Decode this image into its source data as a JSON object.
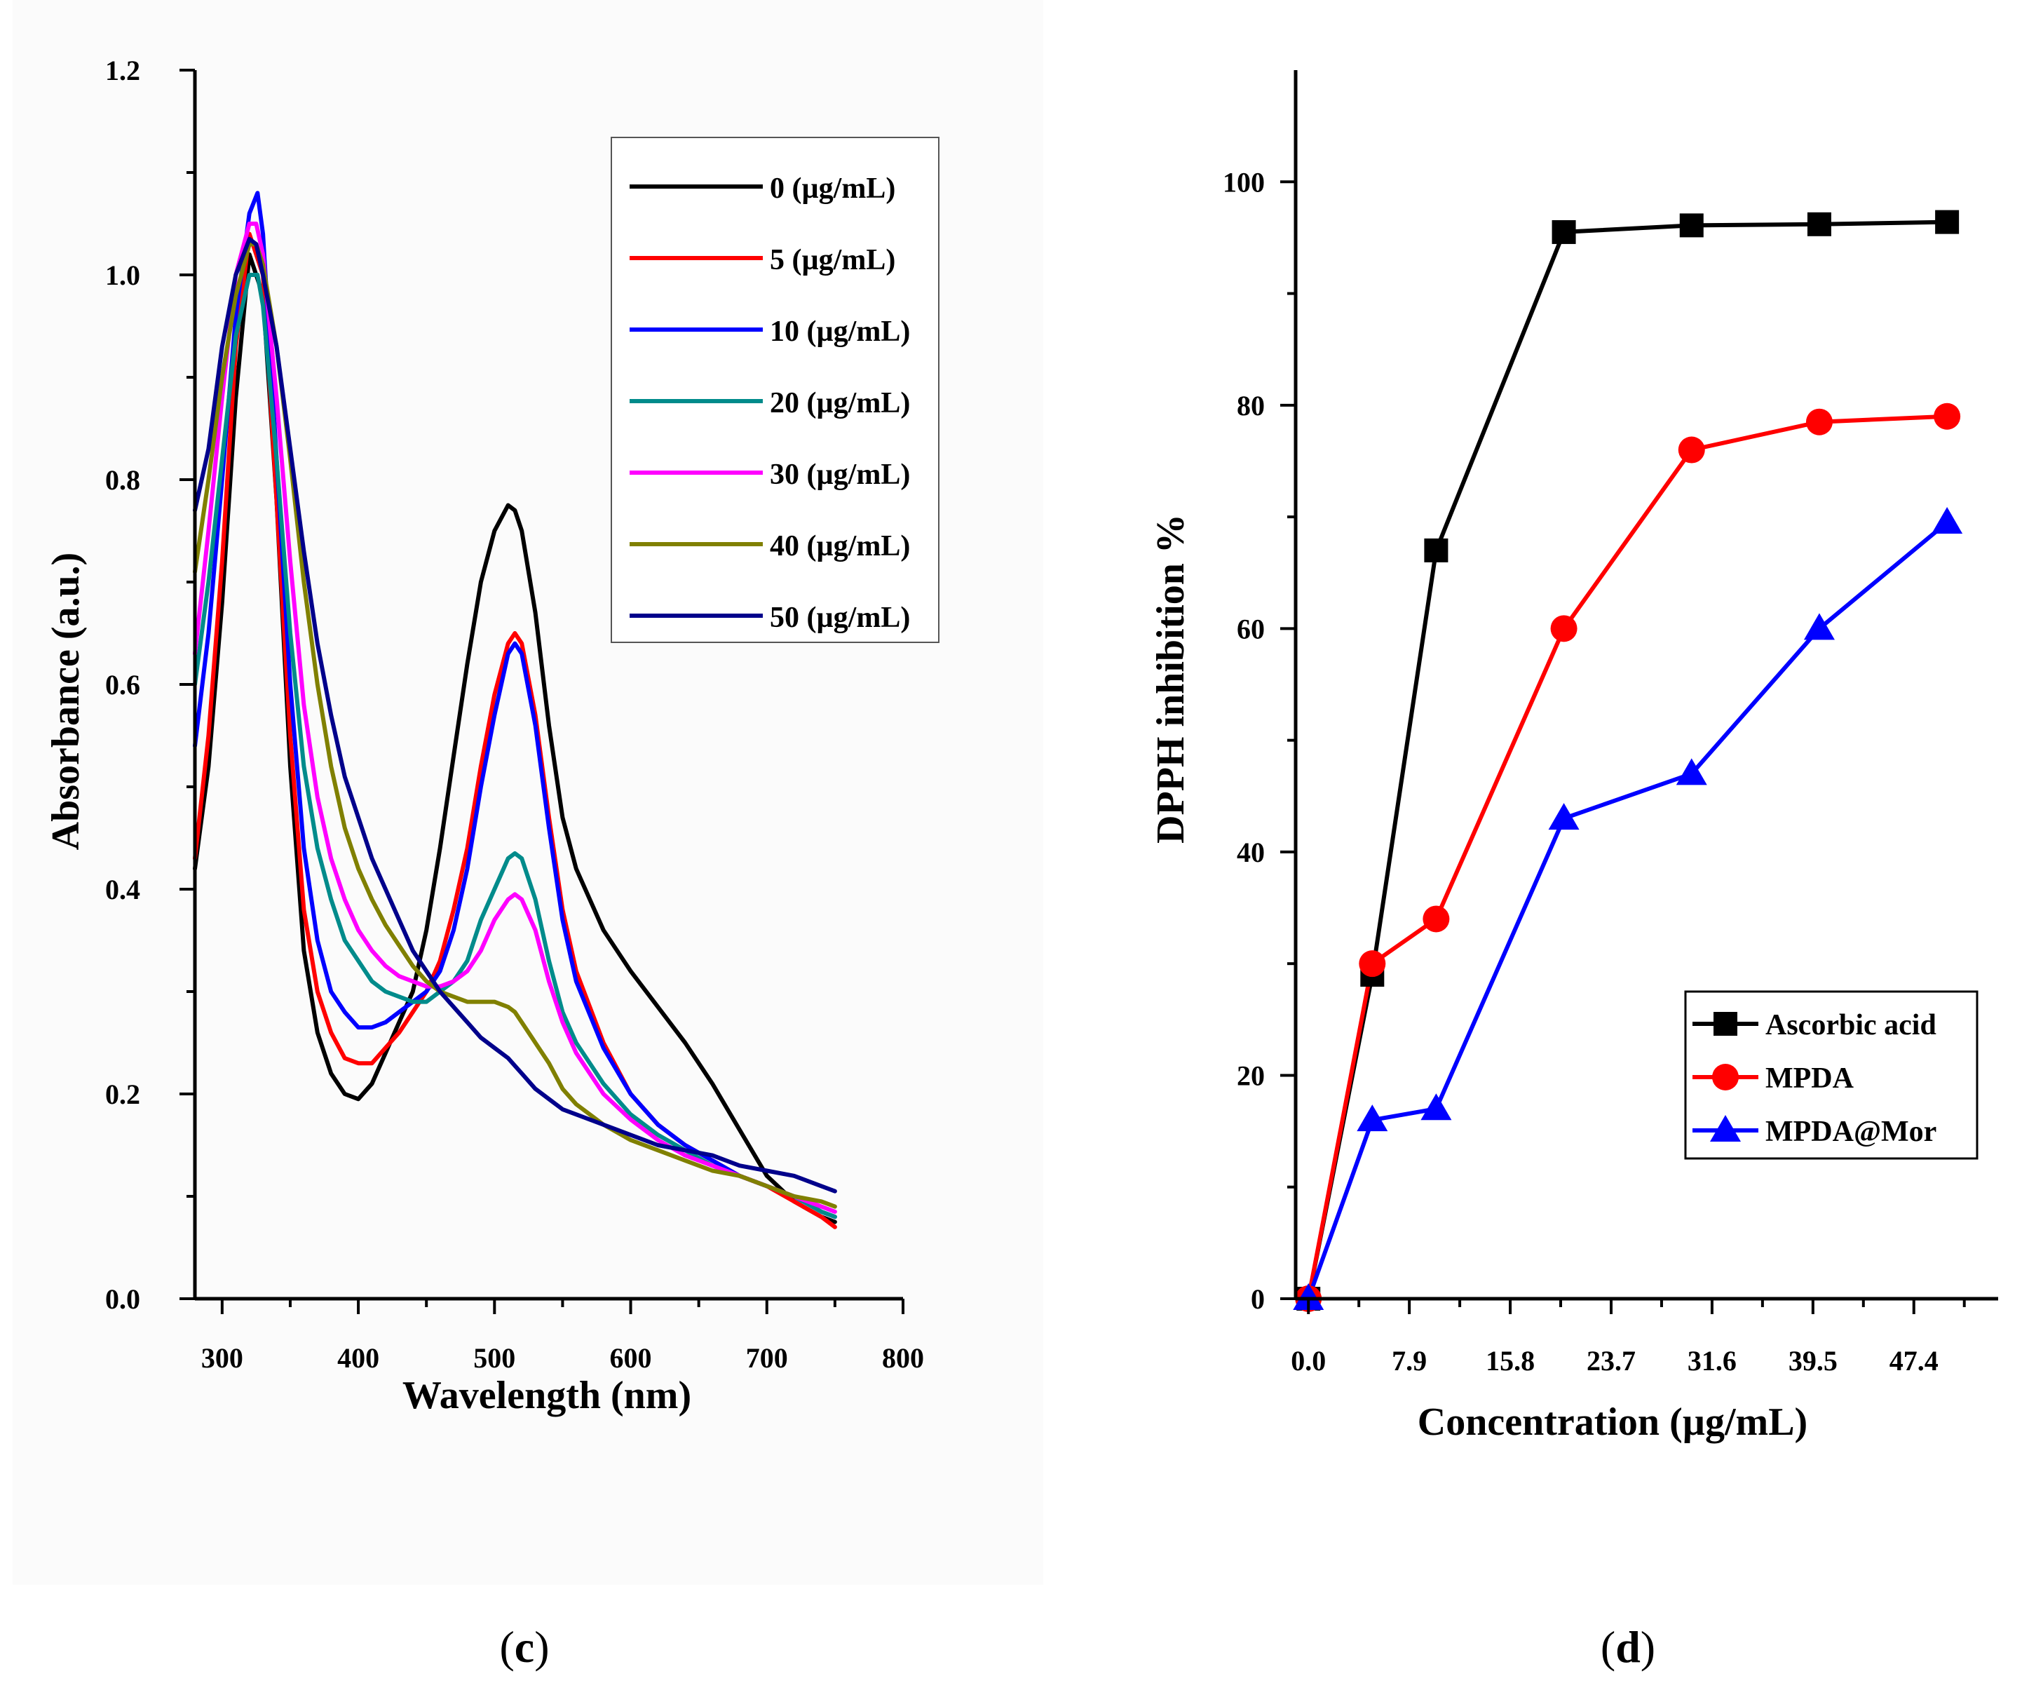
{
  "chart_data": [
    {
      "panel": "c",
      "type": "line",
      "xlabel": "Wavelength (nm)",
      "ylabel": "Absorbance (a.u.)",
      "xlim": [
        280,
        800
      ],
      "ylim": [
        0.0,
        1.2
      ],
      "xticks": [
        300,
        400,
        500,
        600,
        700,
        800
      ],
      "xtick_labels": [
        "300",
        "400",
        "500",
        "600",
        "700",
        "800"
      ],
      "yticks": [
        0.0,
        0.2,
        0.4,
        0.6,
        0.8,
        1.0,
        1.2
      ],
      "ytick_labels": [
        "0.0",
        "0.2",
        "0.4",
        "0.6",
        "0.8",
        "1.0",
        "1.2"
      ],
      "legend_position": "top-right",
      "series": [
        {
          "name": "0 (µg/mL)",
          "color": "#000000",
          "x": [
            280,
            290,
            300,
            310,
            320,
            330,
            340,
            350,
            360,
            370,
            380,
            390,
            400,
            410,
            420,
            430,
            440,
            450,
            460,
            470,
            480,
            490,
            500,
            510,
            515,
            520,
            530,
            540,
            550,
            560,
            580,
            600,
            620,
            640,
            660,
            680,
            700,
            720,
            740,
            750
          ],
          "y": [
            0.42,
            0.52,
            0.68,
            0.88,
            1.02,
            0.98,
            0.78,
            0.52,
            0.34,
            0.26,
            0.22,
            0.2,
            0.195,
            0.21,
            0.24,
            0.27,
            0.3,
            0.36,
            0.44,
            0.53,
            0.62,
            0.7,
            0.75,
            0.775,
            0.77,
            0.75,
            0.67,
            0.56,
            0.47,
            0.42,
            0.36,
            0.32,
            0.285,
            0.25,
            0.21,
            0.165,
            0.12,
            0.095,
            0.08,
            0.075
          ]
        },
        {
          "name": "5 (µg/mL)",
          "color": "#ff0000",
          "x": [
            280,
            290,
            300,
            310,
            320,
            330,
            340,
            350,
            360,
            370,
            380,
            390,
            400,
            410,
            420,
            430,
            440,
            450,
            460,
            470,
            480,
            490,
            500,
            510,
            515,
            520,
            530,
            540,
            550,
            560,
            580,
            600,
            620,
            640,
            660,
            680,
            700,
            720,
            740,
            750
          ],
          "y": [
            0.43,
            0.55,
            0.72,
            0.93,
            1.04,
            1.0,
            0.78,
            0.55,
            0.38,
            0.3,
            0.26,
            0.235,
            0.23,
            0.23,
            0.245,
            0.26,
            0.28,
            0.3,
            0.33,
            0.38,
            0.44,
            0.52,
            0.59,
            0.64,
            0.65,
            0.64,
            0.57,
            0.47,
            0.38,
            0.32,
            0.25,
            0.2,
            0.17,
            0.15,
            0.135,
            0.12,
            0.11,
            0.095,
            0.08,
            0.07
          ]
        },
        {
          "name": "10 (µg/mL)",
          "color": "#0000ff",
          "x": [
            280,
            290,
            300,
            310,
            320,
            326,
            330,
            340,
            350,
            360,
            370,
            380,
            390,
            400,
            410,
            420,
            430,
            440,
            450,
            460,
            470,
            480,
            490,
            500,
            510,
            515,
            520,
            530,
            540,
            550,
            560,
            580,
            600,
            620,
            640,
            660,
            680,
            700,
            720,
            740,
            750
          ],
          "y": [
            0.54,
            0.65,
            0.8,
            0.96,
            1.06,
            1.08,
            1.04,
            0.82,
            0.6,
            0.44,
            0.35,
            0.3,
            0.28,
            0.265,
            0.265,
            0.27,
            0.28,
            0.29,
            0.3,
            0.32,
            0.36,
            0.42,
            0.5,
            0.57,
            0.63,
            0.64,
            0.63,
            0.56,
            0.46,
            0.37,
            0.31,
            0.245,
            0.2,
            0.17,
            0.15,
            0.135,
            0.12,
            0.11,
            0.1,
            0.085,
            0.08
          ]
        },
        {
          "name": "20 (µg/mL)",
          "color": "#008b8b",
          "x": [
            280,
            290,
            300,
            310,
            320,
            326,
            330,
            340,
            350,
            360,
            370,
            380,
            390,
            400,
            410,
            420,
            430,
            440,
            450,
            460,
            470,
            480,
            490,
            500,
            510,
            515,
            520,
            530,
            540,
            550,
            560,
            580,
            600,
            620,
            640,
            660,
            680,
            700,
            720,
            740,
            750
          ],
          "y": [
            0.6,
            0.7,
            0.82,
            0.94,
            1.0,
            1.0,
            0.97,
            0.82,
            0.65,
            0.52,
            0.44,
            0.39,
            0.35,
            0.33,
            0.31,
            0.3,
            0.295,
            0.29,
            0.29,
            0.3,
            0.31,
            0.33,
            0.37,
            0.4,
            0.43,
            0.435,
            0.43,
            0.39,
            0.33,
            0.28,
            0.25,
            0.21,
            0.18,
            0.16,
            0.145,
            0.13,
            0.12,
            0.11,
            0.1,
            0.085,
            0.08
          ]
        },
        {
          "name": "30 (µg/mL)",
          "color": "#ff00ff",
          "x": [
            280,
            290,
            300,
            310,
            320,
            325,
            330,
            340,
            350,
            360,
            370,
            380,
            390,
            400,
            410,
            420,
            430,
            440,
            450,
            460,
            470,
            480,
            490,
            500,
            510,
            515,
            520,
            530,
            540,
            550,
            560,
            580,
            600,
            620,
            640,
            660,
            680,
            700,
            720,
            740,
            750
          ],
          "y": [
            0.63,
            0.75,
            0.88,
            1.0,
            1.05,
            1.05,
            1.02,
            0.88,
            0.72,
            0.58,
            0.49,
            0.43,
            0.39,
            0.36,
            0.34,
            0.325,
            0.315,
            0.31,
            0.305,
            0.305,
            0.31,
            0.32,
            0.34,
            0.37,
            0.39,
            0.395,
            0.39,
            0.36,
            0.31,
            0.27,
            0.24,
            0.2,
            0.175,
            0.155,
            0.14,
            0.13,
            0.12,
            0.11,
            0.1,
            0.09,
            0.085
          ]
        },
        {
          "name": "40 (µg/mL)",
          "color": "#808000",
          "x": [
            280,
            290,
            300,
            310,
            320,
            325,
            330,
            340,
            350,
            360,
            370,
            380,
            390,
            400,
            410,
            420,
            430,
            440,
            450,
            460,
            470,
            480,
            490,
            500,
            510,
            515,
            520,
            530,
            540,
            550,
            560,
            580,
            600,
            620,
            640,
            660,
            680,
            700,
            720,
            740,
            750
          ],
          "y": [
            0.71,
            0.8,
            0.9,
            0.98,
            1.03,
            1.03,
            1.01,
            0.93,
            0.82,
            0.7,
            0.6,
            0.52,
            0.46,
            0.42,
            0.39,
            0.365,
            0.345,
            0.325,
            0.31,
            0.3,
            0.295,
            0.29,
            0.29,
            0.29,
            0.285,
            0.28,
            0.27,
            0.25,
            0.23,
            0.205,
            0.19,
            0.17,
            0.155,
            0.145,
            0.135,
            0.125,
            0.12,
            0.11,
            0.1,
            0.095,
            0.09
          ]
        },
        {
          "name": "50 (µg/mL)",
          "color": "#00008b",
          "x": [
            280,
            290,
            300,
            310,
            320,
            325,
            330,
            340,
            350,
            360,
            370,
            380,
            390,
            400,
            410,
            420,
            430,
            440,
            450,
            460,
            470,
            480,
            490,
            500,
            510,
            520,
            530,
            540,
            550,
            560,
            580,
            600,
            620,
            640,
            660,
            680,
            700,
            720,
            740,
            750
          ],
          "y": [
            0.77,
            0.83,
            0.93,
            1.0,
            1.035,
            1.03,
            1.0,
            0.93,
            0.83,
            0.73,
            0.64,
            0.57,
            0.51,
            0.47,
            0.43,
            0.4,
            0.37,
            0.34,
            0.32,
            0.3,
            0.285,
            0.27,
            0.255,
            0.245,
            0.235,
            0.22,
            0.205,
            0.195,
            0.185,
            0.18,
            0.17,
            0.16,
            0.15,
            0.145,
            0.14,
            0.13,
            0.125,
            0.12,
            0.11,
            0.105
          ]
        }
      ]
    },
    {
      "panel": "d",
      "type": "line",
      "xlabel": "Concentration (µg/mL)",
      "ylabel": "DPPH inhibition %",
      "xlim": [
        -1,
        54
      ],
      "ylim": [
        0,
        110
      ],
      "xticks": [
        0.0,
        7.9,
        15.8,
        23.7,
        31.6,
        39.5,
        47.4
      ],
      "xtick_labels": [
        "0.0",
        "7.9",
        "15.8",
        "23.7",
        "31.6",
        "39.5",
        "47.4"
      ],
      "yticks": [
        0,
        20,
        40,
        60,
        80,
        100
      ],
      "ytick_labels": [
        "0",
        "20",
        "40",
        "60",
        "80",
        "100"
      ],
      "legend_position": "bottom-right",
      "series": [
        {
          "name": "Ascorbic acid",
          "color": "#000000",
          "marker": "square",
          "x": [
            0,
            5,
            10,
            20,
            30,
            40,
            50
          ],
          "y": [
            0,
            29,
            67,
            95.5,
            96.1,
            96.2,
            96.4
          ]
        },
        {
          "name": "MPDA",
          "color": "#ff0000",
          "marker": "circle",
          "x": [
            0,
            5,
            10,
            20,
            30,
            40,
            50
          ],
          "y": [
            0,
            30,
            34,
            60,
            76,
            78.5,
            79
          ]
        },
        {
          "name": "MPDA@Mor",
          "color": "#0000ff",
          "marker": "triangle",
          "x": [
            0,
            5,
            10,
            20,
            30,
            40,
            50
          ],
          "y": [
            0,
            16,
            17,
            43,
            47,
            60,
            69.5
          ]
        }
      ]
    }
  ],
  "captions": {
    "c": {
      "open": "(",
      "letter": "c",
      "close": ")"
    },
    "d": {
      "open": "(",
      "letter": "d",
      "close": ")"
    }
  }
}
